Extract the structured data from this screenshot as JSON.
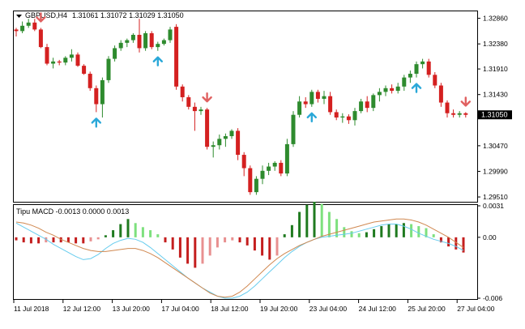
{
  "window": {
    "symbol_title": "GBPUSD,H4",
    "ohlc": "1.31061 1.31072 1.31029 1.31050"
  },
  "indicator": {
    "title": "Tipu MACD -0.0013 0.0000 0.0013",
    "scale_labels": [
      "0.0031",
      "0.00",
      "-0.006"
    ],
    "range": [
      -0.006,
      0.0031
    ]
  },
  "price_axis": {
    "labels": [
      "1.32860",
      "1.32380",
      "1.31910",
      "1.31430",
      "1.30470",
      "1.29990",
      "1.29510"
    ],
    "current_price": "1.31050",
    "range": [
      1.2951,
      1.3286
    ]
  },
  "time_axis": {
    "labels": [
      "11 Jul 2018",
      "12 Jul 12:00",
      "13 Jul 20:00",
      "17 Jul 04:00",
      "18 Jul 12:00",
      "19 Jul 20:00",
      "23 Jul 04:00",
      "24 Jul 12:00",
      "25 Jul 20:00",
      "27 Jul 04:00"
    ]
  },
  "colors": {
    "bull": "#2e8b2e",
    "bear": "#d42020",
    "arrow_up": "#2aa8d8",
    "arrow_down": "#e06060",
    "macd_line": "#66ccee",
    "signal_line": "#d08850",
    "hist_bull_strong": "#1f7a1f",
    "hist_bull_weak": "#7ee07e",
    "hist_bear_strong": "#c41e1e",
    "hist_bear_weak": "#e89090"
  },
  "chart_data": {
    "type": "candlestick",
    "candles": [
      [
        1.3265,
        1.3268,
        1.3252,
        1.3262
      ],
      [
        1.3262,
        1.328,
        1.3258,
        1.3272
      ],
      [
        1.3272,
        1.3285,
        1.3268,
        1.3278
      ],
      [
        1.3278,
        1.3285,
        1.3262,
        1.3265
      ],
      [
        1.3265,
        1.3268,
        1.323,
        1.3232
      ],
      [
        1.3232,
        1.3238,
        1.3198,
        1.3201
      ],
      [
        1.3201,
        1.3212,
        1.3192,
        1.3205
      ],
      [
        1.3205,
        1.3208,
        1.3198,
        1.3203
      ],
      [
        1.3203,
        1.3215,
        1.3198,
        1.3212
      ],
      [
        1.3212,
        1.3228,
        1.3205,
        1.3218
      ],
      [
        1.3218,
        1.3222,
        1.3195,
        1.3197
      ],
      [
        1.3197,
        1.32,
        1.318,
        1.3182
      ],
      [
        1.3182,
        1.3186,
        1.315,
        1.3155
      ],
      [
        1.3155,
        1.316,
        1.311,
        1.3125
      ],
      [
        1.3125,
        1.3175,
        1.31,
        1.317
      ],
      [
        1.317,
        1.3215,
        1.3165,
        1.321
      ],
      [
        1.321,
        1.3235,
        1.3205,
        1.323
      ],
      [
        1.323,
        1.3245,
        1.3225,
        1.324
      ],
      [
        1.324,
        1.3248,
        1.3232,
        1.3245
      ],
      [
        1.3245,
        1.3258,
        1.324,
        1.3255
      ],
      [
        1.3255,
        1.3285,
        1.3222,
        1.323
      ],
      [
        1.323,
        1.3262,
        1.3225,
        1.3258
      ],
      [
        1.3258,
        1.3262,
        1.3228,
        1.3232
      ],
      [
        1.3232,
        1.3242,
        1.3225,
        1.3238
      ],
      [
        1.3238,
        1.3248,
        1.3235,
        1.3245
      ],
      [
        1.3245,
        1.327,
        1.324,
        1.3265
      ],
      [
        1.327,
        1.3275,
        1.3152,
        1.3158
      ],
      [
        1.3158,
        1.3162,
        1.313,
        1.3138
      ],
      [
        1.3138,
        1.3142,
        1.3115,
        1.312
      ],
      [
        1.312,
        1.3128,
        1.3075,
        1.3112
      ],
      [
        1.3112,
        1.312,
        1.3105,
        1.3115
      ],
      [
        1.3115,
        1.3118,
        1.304,
        1.3045
      ],
      [
        1.3045,
        1.3055,
        1.3025,
        1.3048
      ],
      [
        1.3048,
        1.3068,
        1.304,
        1.306
      ],
      [
        1.306,
        1.307,
        1.3045,
        1.3065
      ],
      [
        1.3065,
        1.3078,
        1.306,
        1.3075
      ],
      [
        1.3075,
        1.308,
        1.302,
        1.303
      ],
      [
        1.303,
        1.3035,
        1.299,
        1.3005
      ],
      [
        1.3005,
        1.301,
        1.2955,
        1.296
      ],
      [
        1.296,
        1.299,
        1.2955,
        1.2985
      ],
      [
        1.2985,
        1.301,
        1.2975,
        1.3
      ],
      [
        1.3,
        1.3015,
        1.2992,
        1.3008
      ],
      [
        1.3008,
        1.3018,
        1.3,
        1.3015
      ],
      [
        1.3015,
        1.302,
        1.299,
        1.2995
      ],
      [
        1.2995,
        1.306,
        1.299,
        1.305
      ],
      [
        1.305,
        1.3112,
        1.3045,
        1.3105
      ],
      [
        1.3105,
        1.314,
        1.31,
        1.313
      ],
      [
        1.313,
        1.3138,
        1.3118,
        1.3125
      ],
      [
        1.3125,
        1.3152,
        1.312,
        1.3148
      ],
      [
        1.3148,
        1.3152,
        1.3128,
        1.3135
      ],
      [
        1.3135,
        1.315,
        1.3125,
        1.314
      ],
      [
        1.314,
        1.3148,
        1.3105,
        1.311
      ],
      [
        1.311,
        1.3115,
        1.3095,
        1.31
      ],
      [
        1.31,
        1.3108,
        1.309,
        1.3102
      ],
      [
        1.3102,
        1.3106,
        1.3088,
        1.3095
      ],
      [
        1.3095,
        1.3118,
        1.3085,
        1.3112
      ],
      [
        1.3112,
        1.3135,
        1.3108,
        1.313
      ],
      [
        1.313,
        1.314,
        1.311,
        1.3118
      ],
      [
        1.3118,
        1.3145,
        1.3112,
        1.3142
      ],
      [
        1.3142,
        1.3155,
        1.313,
        1.3148
      ],
      [
        1.3148,
        1.316,
        1.314,
        1.3155
      ],
      [
        1.3155,
        1.3162,
        1.3145,
        1.315
      ],
      [
        1.315,
        1.3165,
        1.3145,
        1.3158
      ],
      [
        1.3158,
        1.318,
        1.315,
        1.3175
      ],
      [
        1.3175,
        1.3188,
        1.3165,
        1.3182
      ],
      [
        1.3182,
        1.3205,
        1.3175,
        1.32
      ],
      [
        1.32,
        1.321,
        1.3192,
        1.3205
      ],
      [
        1.3205,
        1.321,
        1.3175,
        1.318
      ],
      [
        1.318,
        1.3185,
        1.3155,
        1.316
      ],
      [
        1.316,
        1.3165,
        1.312,
        1.3128
      ],
      [
        1.3128,
        1.3132,
        1.31,
        1.3108
      ],
      [
        1.3108,
        1.3115,
        1.31,
        1.3105
      ],
      [
        1.3105,
        1.3112,
        1.31,
        1.3108
      ],
      [
        1.3108,
        1.311,
        1.31,
        1.3105
      ]
    ],
    "arrows_up": [
      13,
      23,
      48,
      65
    ],
    "arrows_down": [
      4,
      31,
      73
    ],
    "macd": {
      "histogram": [
        -0.0003,
        -0.0005,
        -0.0006,
        -0.0006,
        -0.0005,
        -0.0005,
        -0.0005,
        -0.0005,
        -0.0006,
        -0.0006,
        -0.0004,
        -0.0002,
        0.0002,
        0.0007,
        0.0013,
        0.0018,
        0.0014,
        0.001,
        0.0007,
        0.0003,
        -0.0005,
        -0.0012,
        -0.002,
        -0.0026,
        -0.003,
        -0.0026,
        -0.0018,
        -0.001,
        -0.0005,
        -0.0003,
        -0.0005,
        -0.0008,
        -0.0013,
        -0.0018,
        -0.0022,
        -0.0018,
        0.0003,
        0.0012,
        0.0025,
        0.0032,
        0.0035,
        0.0033,
        0.0025,
        0.0018,
        0.001,
        0.0006,
        0.0004,
        0.0005,
        0.0008,
        0.0011,
        0.0013,
        0.0013,
        0.0014,
        0.0013,
        0.0011,
        0.0009,
        0.0003,
        -0.0005,
        -0.0009,
        -0.0012,
        -0.0015
      ],
      "macd_line": [
        0.0014,
        0.001,
        0.0006,
        0.0002,
        -0.0002,
        -0.0007,
        -0.0011,
        -0.0015,
        -0.0019,
        -0.0022,
        -0.0021,
        -0.0017,
        -0.0011,
        -0.0006,
        -0.0003,
        -0.0001,
        -0.0002,
        -0.0005,
        -0.001,
        -0.0016,
        -0.0022,
        -0.0028,
        -0.0034,
        -0.004,
        -0.0045,
        -0.005,
        -0.0054,
        -0.0058,
        -0.006,
        -0.006,
        -0.0058,
        -0.0054,
        -0.0048,
        -0.0041,
        -0.0034,
        -0.0027,
        -0.002,
        -0.0014,
        -0.0009,
        -0.0005,
        -0.0002,
        -0.0,
        0.0001,
        0.0002,
        0.0003,
        0.0004,
        0.0006,
        0.0008,
        0.001,
        0.0012,
        0.0013,
        0.0013,
        0.0011,
        0.0008,
        0.0004,
        0.0001,
        -0.0002,
        -0.0004,
        -0.0006,
        -0.0009,
        -0.0013
      ],
      "signal_line": [
        0.0015,
        0.0014,
        0.0012,
        0.0009,
        0.0005,
        0.0002,
        -0.0002,
        -0.0005,
        -0.0008,
        -0.0011,
        -0.0013,
        -0.0014,
        -0.0014,
        -0.0013,
        -0.0012,
        -0.0011,
        -0.0011,
        -0.0013,
        -0.0016,
        -0.002,
        -0.0025,
        -0.003,
        -0.0035,
        -0.004,
        -0.0045,
        -0.005,
        -0.0055,
        -0.0058,
        -0.0059,
        -0.0058,
        -0.0054,
        -0.0048,
        -0.0041,
        -0.0034,
        -0.0027,
        -0.0021,
        -0.0016,
        -0.0012,
        -0.0008,
        -0.0005,
        -0.0002,
        0.0001,
        0.0003,
        0.0005,
        0.0007,
        0.0009,
        0.0011,
        0.0013,
        0.0015,
        0.0016,
        0.0017,
        0.0018,
        0.0018,
        0.0017,
        0.0015,
        0.0012,
        0.0008,
        0.0004,
        0.0,
        -0.0005,
        -0.001
      ]
    }
  }
}
